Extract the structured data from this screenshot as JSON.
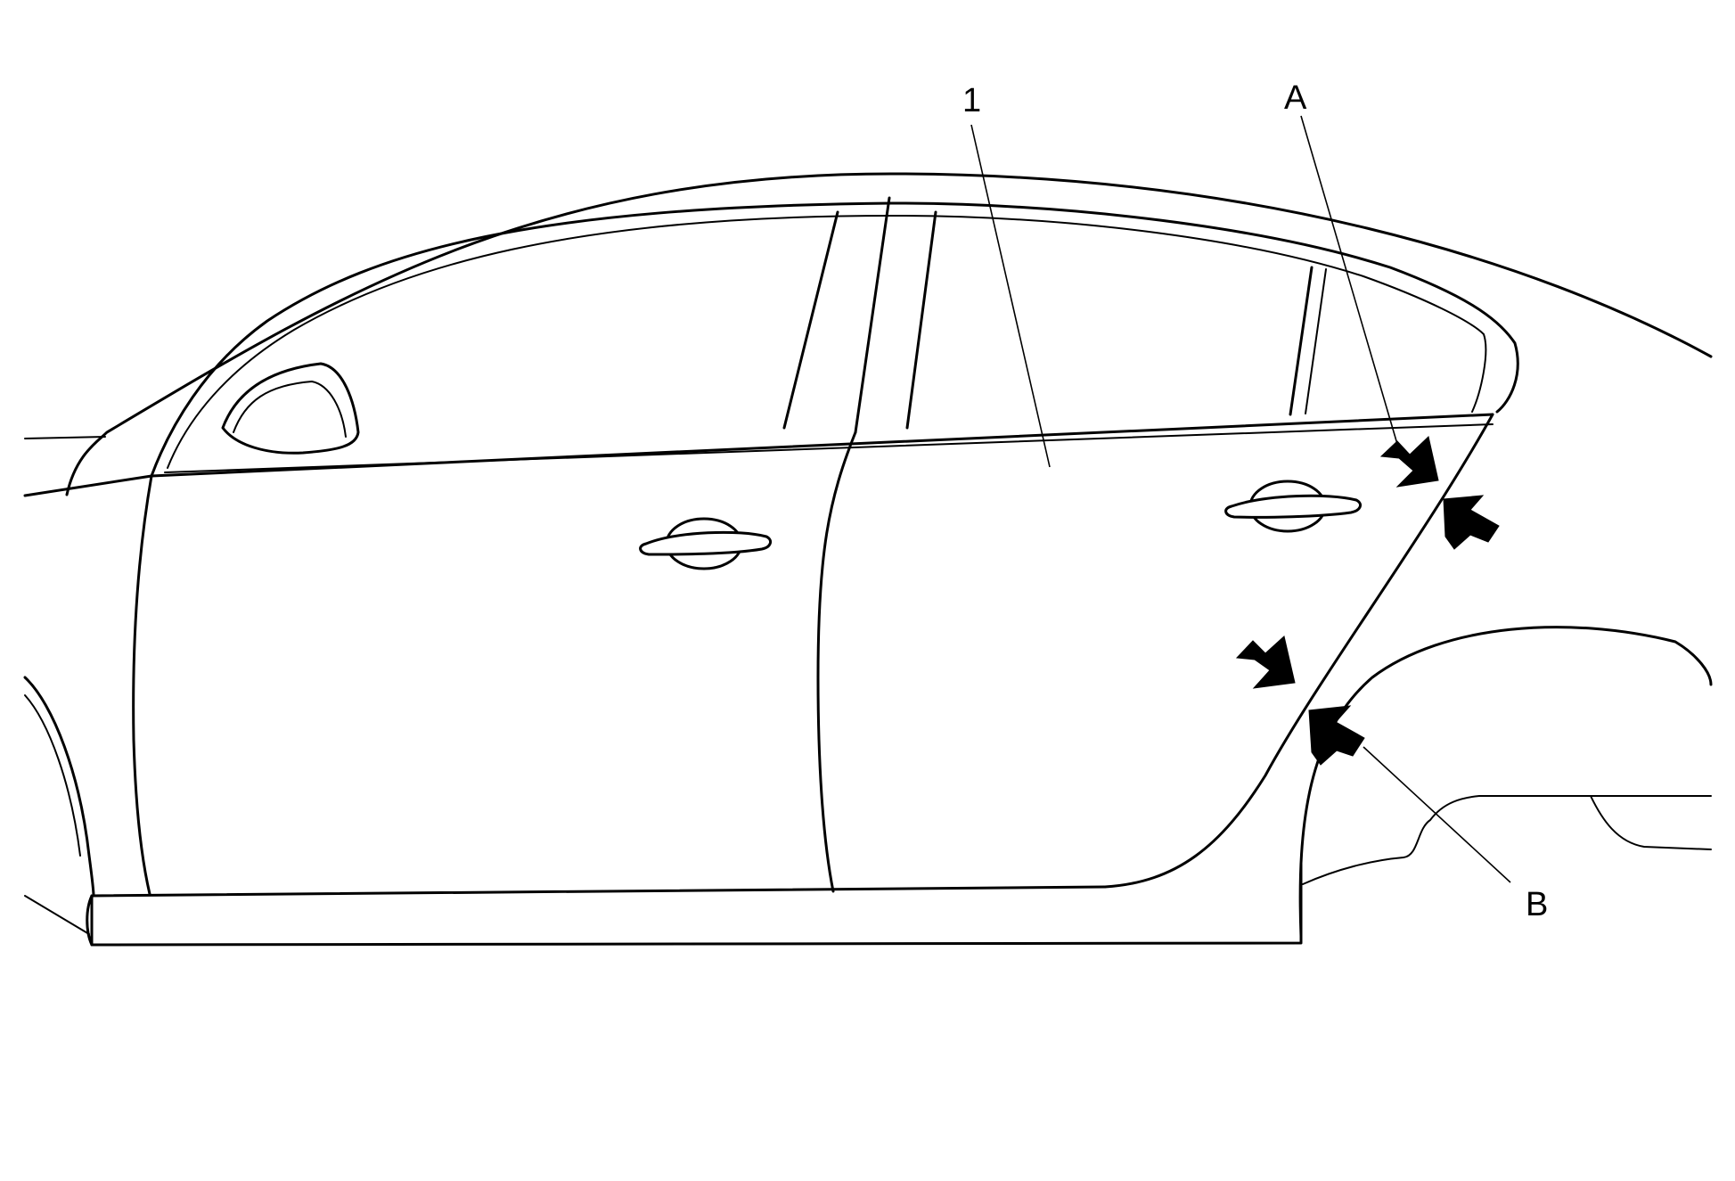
{
  "diagram": {
    "labels": {
      "part_1": "1",
      "point_a": "A",
      "point_b": "B"
    },
    "colors": {
      "line": "#000000",
      "background": "#ffffff"
    }
  }
}
